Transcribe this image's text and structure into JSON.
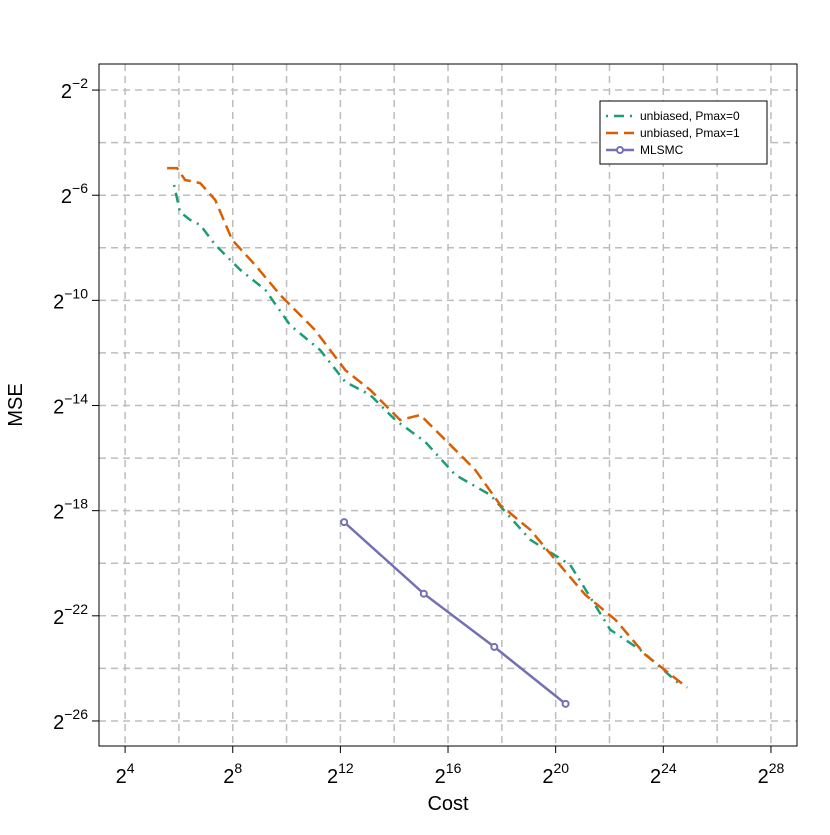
{
  "chart_data": {
    "type": "line",
    "xlabel": "Cost",
    "ylabel": "MSE",
    "xscale": "log2",
    "yscale": "log2",
    "grid": true,
    "legend": "topright",
    "xlim": [
      8.17,
      525000000
    ],
    "ylim": [
      7.7e-09,
      0.497
    ],
    "xticks": [
      {
        "value": 16,
        "label": "2",
        "exponent": "4"
      },
      {
        "value": 256,
        "label": "2",
        "exponent": "8"
      },
      {
        "value": 4096,
        "label": "2",
        "exponent": "12"
      },
      {
        "value": 65536,
        "label": "2",
        "exponent": "16"
      },
      {
        "value": 1048576,
        "label": "2",
        "exponent": "20"
      },
      {
        "value": 16777216,
        "label": "2",
        "exponent": "24"
      },
      {
        "value": 268435456,
        "label": "2",
        "exponent": "28"
      }
    ],
    "yticks": [
      {
        "value": 0.25,
        "label": "2",
        "exponent": "−2"
      },
      {
        "value": 0.015625,
        "label": "2",
        "exponent": "−6"
      },
      {
        "value": 0.0009765625,
        "label": "2",
        "exponent": "−10"
      },
      {
        "value": 6.103515625e-05,
        "label": "2",
        "exponent": "−14"
      },
      {
        "value": 3.814697265625e-06,
        "label": "2",
        "exponent": "−18"
      },
      {
        "value": 2.384185791015625e-07,
        "label": "2",
        "exponent": "−22"
      },
      {
        "value": 1.4901161193847656e-08,
        "label": "2",
        "exponent": "−26"
      }
    ],
    "xgrid": [
      16,
      64,
      256,
      1024,
      4096,
      16384,
      65536,
      262144,
      1048576,
      4194304,
      16777216,
      67108864,
      268435456
    ],
    "ygrid": [
      0.25,
      0.0625,
      0.015625,
      0.00390625,
      0.0009765625,
      0.000244140625,
      6.103515625e-05,
      1.52587890625e-05,
      3.814697265625e-06,
      9.5367431640625e-07,
      2.384185791015625e-07,
      5.960464477539063e-08,
      1.4901161193847656e-08
    ],
    "series": [
      {
        "name": "unbiased, Pmax=0",
        "color": "#1b9e77",
        "linestyle": "dotdash",
        "x": [
          56.5,
          65.8,
          85.6,
          110.7,
          163,
          311,
          592,
          1120,
          2435,
          4640,
          8840,
          16840,
          36370,
          79040,
          194500,
          546000,
          1525000,
          4280000,
          9240000,
          25970000
        ],
        "values": [
          0.02047,
          0.01002,
          0.00814,
          0.00714,
          0.00422,
          0.00218,
          0.00129,
          0.000509,
          0.000263,
          0.0001139,
          8.06e-05,
          4.17e-05,
          2.345e-05,
          9.79e-06,
          5.78e-06,
          1.767e-06,
          9.15e-07,
          1.651e-07,
          9.75e-08,
          3.88e-08
        ]
      },
      {
        "name": "unbiased, Pmax=1",
        "color": "#d95f02",
        "linestyle": "dashed",
        "x": [
          47.2,
          61.0,
          75.1,
          110.7,
          163,
          252,
          455,
          867,
          2134,
          4640,
          8840,
          19090,
          32100,
          61150,
          132000,
          251500,
          546000,
          1041000,
          2248000,
          4886000,
          10540000,
          31090000
        ],
        "values": [
          0.0319,
          0.0319,
          0.02336,
          0.0215,
          0.01379,
          0.00481,
          0.002488,
          0.00113,
          0.000446,
          0.0001555,
          9.19e-05,
          4.17e-05,
          4.755e-05,
          2.461e-05,
          1.117e-05,
          4.44e-06,
          2.3e-06,
          1.043e-06,
          4.15e-07,
          2.148e-07,
          8.55e-08,
          3.59e-08
        ]
      },
      {
        "name": "MLSMC",
        "color": "#7570b3",
        "linestyle": "solid",
        "marker": "circle",
        "x": [
          4512,
          35120,
          215800,
          1354000
        ],
        "values": [
          2.82e-06,
          4.27e-07,
          1.05e-07,
          2.34e-08
        ]
      }
    ]
  }
}
